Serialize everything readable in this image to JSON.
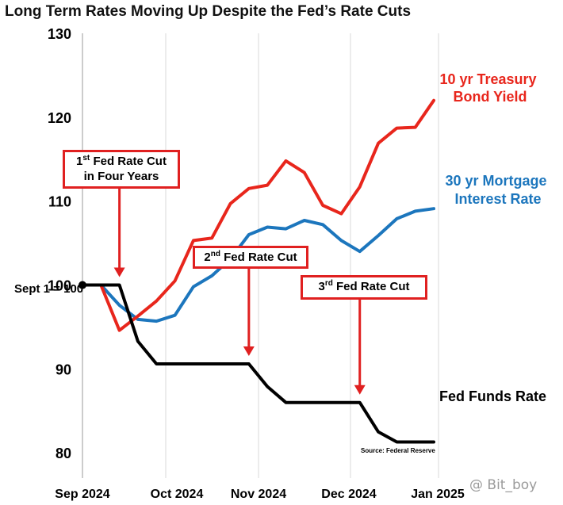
{
  "chart_data": {
    "type": "line",
    "title": "Long Term Rates Moving Up Despite the Fed’s Rate Cuts",
    "xlabel": "",
    "ylabel": "",
    "ylim": [
      77,
      130
    ],
    "y_ticks": [
      "130",
      "120",
      "110",
      "100",
      "90",
      "80"
    ],
    "y_tick_values": [
      130,
      120,
      110,
      100,
      90,
      80
    ],
    "x_tick_labels": [
      "Sep 2024",
      "Oct 2024",
      "Nov 2024",
      "Dec 2024",
      "Jan 2025"
    ],
    "grid": "vertical",
    "baseline_label": "Sept 1 = 100",
    "source": "Source: Federal Reserve",
    "colors": {
      "treasury": "#e8261c",
      "mortgage": "#1c76bd",
      "fedfunds": "#000000",
      "annotation_border": "#e02020"
    },
    "series": [
      {
        "name": "10 yr Treasury Bond Yield",
        "label_lines": [
          "10 yr Treasury",
          "Bond Yield"
        ],
        "color": "#e8261c",
        "x": [
          0,
          1,
          2,
          3,
          4,
          5,
          6,
          7,
          8,
          9,
          10,
          11,
          12,
          13,
          14,
          15,
          16,
          17,
          18,
          19
        ],
        "values": [
          100,
          100,
          94.6,
          96.3,
          98.1,
          100.5,
          105.3,
          105.6,
          109.7,
          111.5,
          111.9,
          114.8,
          113.4,
          109.5,
          108.5,
          111.7,
          116.9,
          118.7,
          118.8,
          122.0
        ]
      },
      {
        "name": "30 yr Mortgage Interest Rate",
        "label_lines": [
          "30 yr Mortgage",
          "Interest Rate"
        ],
        "color": "#1c76bd",
        "x": [
          0,
          1,
          2,
          3,
          4,
          5,
          6,
          7,
          8,
          9,
          10,
          11,
          12,
          13,
          14,
          15,
          16,
          17,
          18,
          19
        ],
        "values": [
          100,
          100,
          97.6,
          95.9,
          95.7,
          96.4,
          99.8,
          101.1,
          103.1,
          106.0,
          106.9,
          106.7,
          107.7,
          107.2,
          105.3,
          104.0,
          105.9,
          107.9,
          108.8,
          109.1
        ]
      },
      {
        "name": "Fed Funds Rate",
        "label_lines": [
          "Fed Funds Rate"
        ],
        "color": "#000000",
        "x": [
          0,
          1,
          2,
          3,
          4,
          5,
          6,
          7,
          8,
          9,
          10,
          11,
          12,
          13,
          14,
          15,
          16,
          17,
          18,
          19
        ],
        "values": [
          100,
          100,
          100,
          93.3,
          90.6,
          90.6,
          90.6,
          90.6,
          90.6,
          90.6,
          87.9,
          86.0,
          86.0,
          86.0,
          86.0,
          86.0,
          82.5,
          81.3,
          81.3,
          81.3
        ]
      }
    ],
    "annotations": [
      {
        "ordinal": "1",
        "suffix": "st",
        "rest": " Fed Rate Cut",
        "line2": "in Four Years",
        "x": 2
      },
      {
        "ordinal": "2",
        "suffix": "nd",
        "rest": " Fed Rate Cut",
        "line2": "",
        "x": 9
      },
      {
        "ordinal": "3",
        "suffix": "rd",
        "rest": " Fed Rate Cut",
        "line2": "",
        "x": 15
      }
    ]
  },
  "watermark": "@ Bit_boy"
}
